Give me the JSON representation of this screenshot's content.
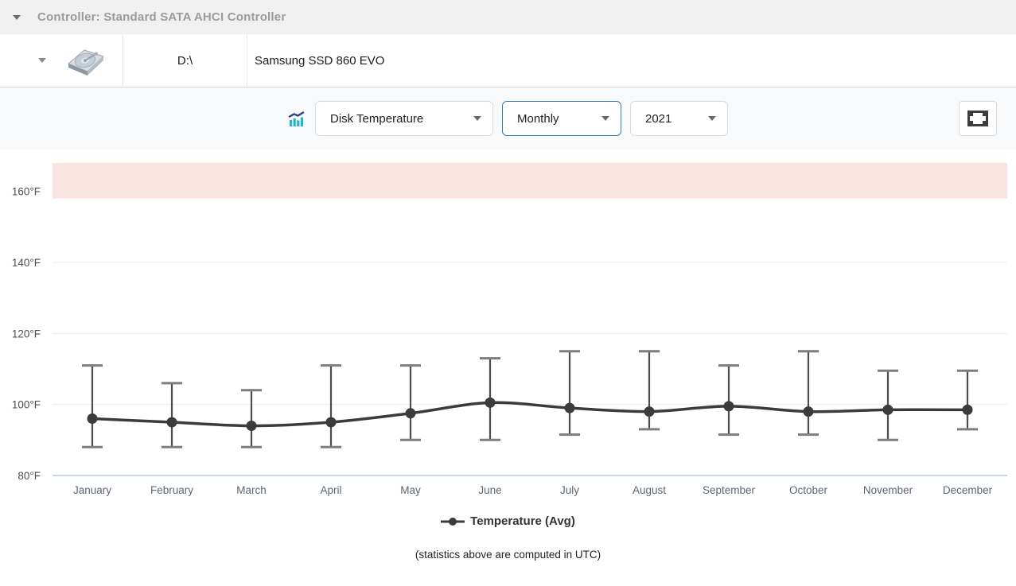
{
  "header": {
    "title": "Controller: Standard SATA AHCI Controller",
    "collapse_icon": "caret-down-icon"
  },
  "disk": {
    "expand_icon": "caret-down-icon",
    "icon": "hdd-icon",
    "drive_letter": "D:\\",
    "model": "Samsung SSD 860 EVO"
  },
  "toolbar": {
    "chart_icon": "stats-chart-icon",
    "metric": "Disk Temperature",
    "period": "Monthly",
    "year": "2021",
    "fullscreen_icon": "fullscreen-icon"
  },
  "chart_data": {
    "type": "line",
    "categories": [
      "January",
      "February",
      "March",
      "April",
      "May",
      "June",
      "July",
      "August",
      "September",
      "October",
      "November",
      "December"
    ],
    "series": [
      {
        "name": "Temperature (Avg)",
        "values": [
          96,
          95,
          94,
          95,
          97.5,
          100.5,
          99,
          98,
          99.5,
          98,
          98.5,
          98.5
        ],
        "error_min": [
          88,
          88,
          88,
          88,
          90,
          90,
          91.5,
          93,
          91.5,
          91.5,
          90,
          93
        ],
        "error_max": [
          111,
          106,
          104,
          111,
          111,
          113,
          115,
          115,
          111,
          115,
          109.5,
          109.5
        ]
      }
    ],
    "ylabel": "°F",
    "yticks": [
      "80°F",
      "100°F",
      "120°F",
      "140°F",
      "160°F"
    ],
    "ytick_values": [
      80,
      100,
      120,
      140,
      160
    ],
    "ylim": [
      80,
      168
    ],
    "grid": true,
    "legend_position": "bottom",
    "legend": [
      "Temperature (Avg)"
    ],
    "danger_zone": {
      "from": 158,
      "to": 168,
      "color": "#fbe3e2"
    },
    "colors": {
      "series": "#3b3b3b",
      "error_bar": "#4d4d4d",
      "error_cap": "#7d7d7d",
      "gridline": "#ececec",
      "axis_line": "#ccd9ec"
    }
  },
  "footer": {
    "note": "(statistics above are computed in UTC)"
  }
}
